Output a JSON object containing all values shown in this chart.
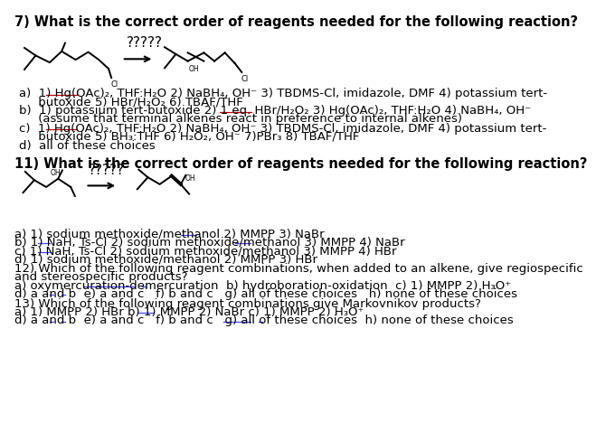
{
  "bg_color": "#ffffff",
  "fs_title": 10.5,
  "fs_body": 9.5,
  "fs_mol_label": 6.0,
  "lw_mol": 1.4,
  "cpw": 5.52,
  "q7_header": "7) What is the correct order of reagents needed for the following reaction?",
  "q11_header": "11) What is the correct order of reagents needed for the following reaction?",
  "q12_header1": "12) Which of the following reagent combinations, when added to an alkene, give regiospecific",
  "q12_header2": "and stereospecific products?",
  "q13_header": "13) Which of the following reagent combinations give Markovnikov products?",
  "q7_a1": "a)  1) Hg(OAc)₂, THF:H₂O 2) NaBH₄, OH⁻ 3) TBDMS-Cl, imidazole, DMF 4) potassium tert-",
  "q7_a2": "     butoxide 5) HBr/H₂O₂ 6) TBAF/THF",
  "q7_b1": "b)  1) potassium tert-butoxide 2) 1 eq. HBr/H₂O₂ 3) Hg(OAc)₂, THF:H₂O 4) NaBH₄, OH⁻",
  "q7_b2": "     (assume that terminal alkenes react in preference to internal alkenes)",
  "q7_c1": "c)  1) Hg(OAc)₂, THF:H₂O 2) NaBH₄, OH⁻ 3) TBDMS-Cl, imidazole, DMF 4) potassium tert-",
  "q7_c2": "     butoxide 5) BH₃:THF 6) H₂O₂, OH⁻ 7)PBr₃ 8) TBAF/THF",
  "q7_d": "d)  all of these choices",
  "q11_a": "a) 1) sodium methoxide/methanol 2) MMPP 3) NaBr",
  "q11_b": "b) 1) NaH, Ts-Cl 2) sodium methoxide/methanol 3) MMPP 4) NaBr",
  "q11_c": "c) 1) NaH, Ts-Cl 2) sodium methoxide/methanol 3) MMPP 4) HBr",
  "q11_d": "d) 1) sodium methoxide/methanol 2) MMPP 3) HBr",
  "q12_a": "a) oxymercuration-demercuration  b) hydroboration-oxidation  c) 1) MMPP 2) H₃O⁺",
  "q12_d": "d) a and b  e) a and c   f) b and c   g) all of these choices   h) none of these choices",
  "q13_a": "a) 1) MMPP 2) HBr b) 1) MMPP 2) NaBr c) 1) MMPP 2) H₃O⁺",
  "q13_d": "d) a and b  e) a and c   f) b and c   g) all of these choices  h) none of these choices",
  "red_ul": "#cc0000",
  "blue_ul": "#4444ff"
}
